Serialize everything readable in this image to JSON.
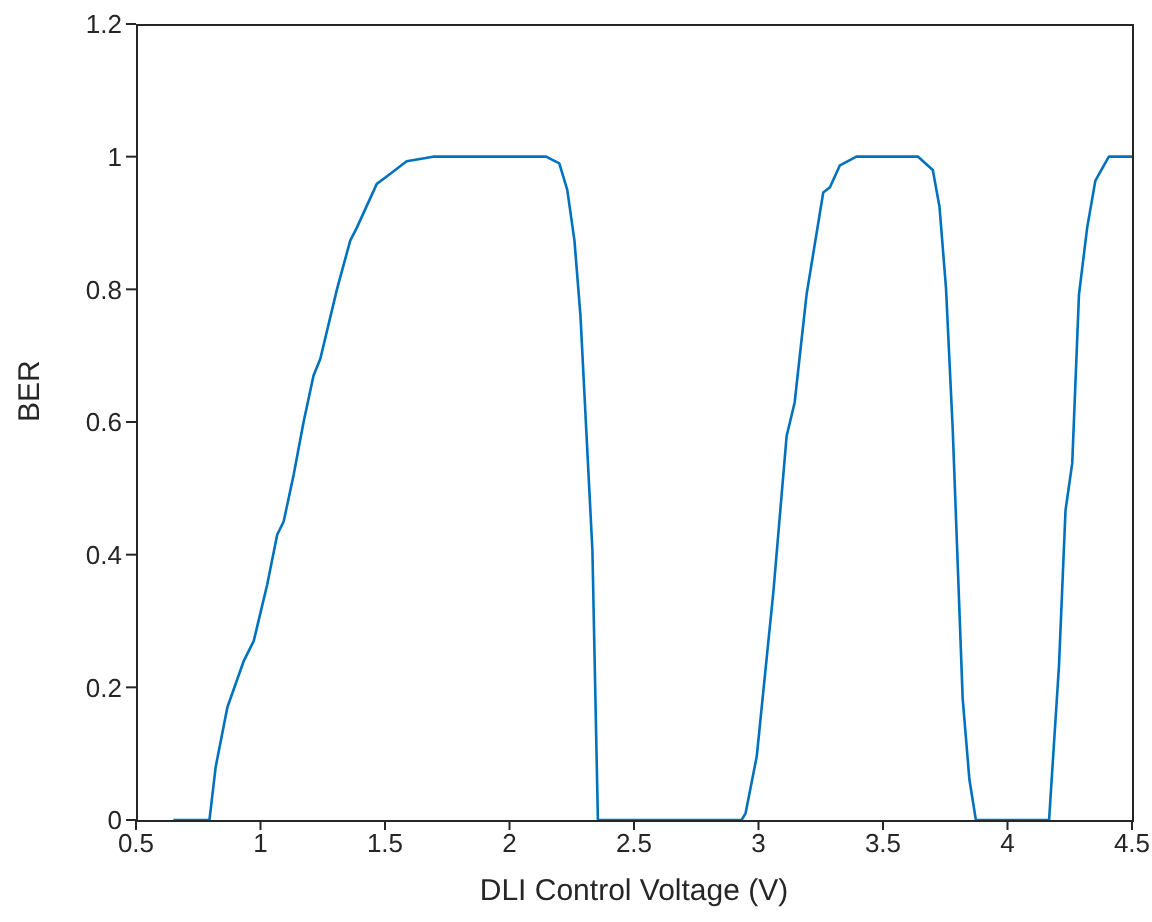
{
  "chart_data": {
    "type": "line",
    "xlabel": "DLI Control Voltage (V)",
    "ylabel": "BER",
    "x": [
      0.65,
      0.795,
      0.82,
      0.867,
      0.933,
      0.973,
      1.027,
      1.067,
      1.093,
      1.133,
      1.173,
      1.213,
      1.24,
      1.307,
      1.36,
      1.387,
      1.467,
      1.507,
      1.587,
      1.693,
      2.147,
      2.2,
      2.232,
      2.261,
      2.285,
      2.333,
      2.355,
      2.932,
      2.948,
      2.993,
      3.06,
      3.113,
      3.145,
      3.193,
      3.26,
      3.287,
      3.327,
      3.393,
      3.641,
      3.7,
      3.727,
      3.753,
      3.78,
      3.82,
      3.847,
      3.873,
      4.167,
      4.207,
      4.233,
      4.26,
      4.287,
      4.32,
      4.353,
      4.407,
      4.5
    ],
    "series": [
      {
        "color": "#0072bd",
        "values": [
          0,
          0,
          0.08,
          0.17,
          0.24,
          0.27,
          0.355,
          0.43,
          0.45,
          0.52,
          0.6,
          0.67,
          0.695,
          0.8,
          0.873,
          0.893,
          0.959,
          0.97,
          0.993,
          1,
          1,
          0.99,
          0.95,
          0.873,
          0.76,
          0.406,
          0,
          0,
          0.01,
          0.096,
          0.345,
          0.579,
          0.629,
          0.792,
          0.946,
          0.954,
          0.987,
          1,
          1,
          0.98,
          0.924,
          0.802,
          0.589,
          0.183,
          0.061,
          0,
          0,
          0.234,
          0.467,
          0.538,
          0.792,
          0.893,
          0.964,
          1,
          1
        ]
      }
    ],
    "xlim": [
      0.5,
      4.5
    ],
    "xticks": [
      0.5,
      1,
      1.5,
      2,
      2.5,
      3,
      3.5,
      4,
      4.5
    ],
    "ylim": [
      0,
      1.2
    ],
    "yticks": [
      0,
      0.2,
      0.4,
      0.6,
      0.8,
      1,
      1.2
    ],
    "grid": false,
    "legend": false,
    "marker": "none",
    "line_style": "solid"
  }
}
